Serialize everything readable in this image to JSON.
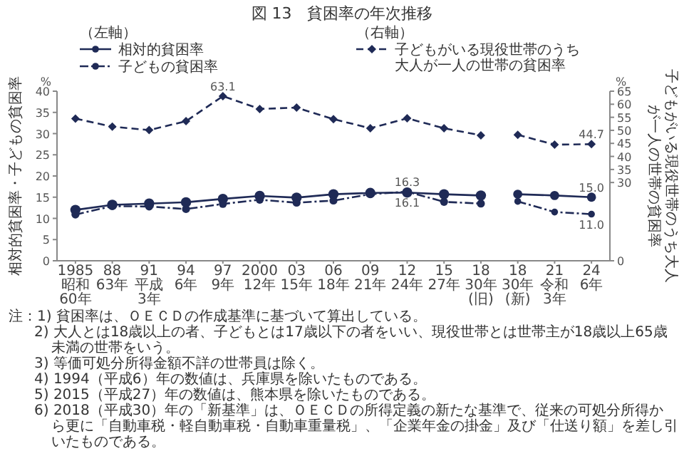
{
  "chart_data": {
    "type": "line",
    "title": "図 13　貧困率の年次推移",
    "categories": [
      "1985\n昭和60年",
      "88\n63年",
      "91\n平成3年",
      "94\n6年",
      "97\n9年",
      "2000\n12年",
      "03\n15年",
      "06\n18年",
      "09\n21年",
      "12\n24年",
      "15\n27年",
      "18\n30年(旧)",
      "18\n30年(新)",
      "21\n令和3年",
      "24\n6年"
    ],
    "ylabel": "相対的貧困率・子どもの貧困率",
    "y2label": "子どもがいる現役世帯のうち大人が一人の世帯の貧困率",
    "ylim": [
      0,
      40
    ],
    "yticks": [
      0,
      5,
      10,
      15,
      20,
      25,
      30,
      35,
      40
    ],
    "y2lim": [
      0,
      65
    ],
    "y2ticks": [
      0,
      30,
      35,
      40,
      45,
      50,
      55,
      60,
      65
    ],
    "legend": "top",
    "grid": false,
    "series": [
      {
        "name": "相対的貧困率",
        "color": "#1f2a56",
        "marker": "circle",
        "line_style": "solid",
        "values": [
          12.0,
          13.2,
          13.5,
          13.8,
          14.6,
          15.3,
          14.9,
          15.7,
          16.0,
          16.1,
          15.7,
          15.4,
          null,
          null,
          null
        ],
        "value_labels": [
          null,
          null,
          null,
          null,
          null,
          null,
          null,
          null,
          null,
          "16.1",
          null,
          null,
          null,
          null,
          null
        ]
      },
      {
        "color": "#1f2a56",
        "marker": "circle",
        "line_style": "solid",
        "values": [
          null,
          null,
          null,
          null,
          null,
          null,
          null,
          null,
          null,
          null,
          null,
          null,
          15.7,
          15.4,
          15.0
        ],
        "value_labels": [
          null,
          null,
          null,
          null,
          null,
          null,
          null,
          null,
          null,
          null,
          null,
          null,
          null,
          null,
          "15.0"
        ]
      },
      {
        "name": "子どもの貧困率",
        "color": "#1f2a56",
        "marker": "circle",
        "line_style": "dotted",
        "values": [
          10.9,
          12.9,
          12.8,
          12.2,
          13.4,
          14.4,
          13.7,
          14.2,
          15.7,
          16.3,
          13.9,
          13.5,
          null,
          null,
          null
        ],
        "value_labels": [
          null,
          null,
          null,
          null,
          null,
          null,
          null,
          null,
          null,
          "16.3",
          null,
          null,
          null,
          null,
          null
        ]
      },
      {
        "color": "#1f2a56",
        "marker": "circle",
        "line_style": "dotted",
        "values": [
          null,
          null,
          null,
          null,
          null,
          null,
          null,
          null,
          null,
          null,
          null,
          null,
          14.0,
          11.5,
          11.0
        ],
        "value_labels": [
          null,
          null,
          null,
          null,
          null,
          null,
          null,
          null,
          null,
          null,
          null,
          null,
          null,
          null,
          "11.0"
        ]
      },
      {
        "name": "子どもがいる現役世帯のうち大人が一人の世帯の貧困率",
        "color": "#1f2a56",
        "marker": "diamond",
        "line_style": "dashed",
        "axis": "y2",
        "values": [
          54.5,
          51.4,
          50.1,
          53.5,
          63.1,
          58.2,
          58.7,
          54.3,
          50.8,
          54.6,
          50.8,
          48.1,
          null,
          null,
          null
        ],
        "value_labels": [
          null,
          null,
          null,
          null,
          "63.1",
          null,
          null,
          null,
          null,
          null,
          null,
          null,
          null,
          null,
          null
        ]
      },
      {
        "color": "#1f2a56",
        "marker": "diamond",
        "line_style": "dashed",
        "axis": "y2",
        "values": [
          null,
          null,
          null,
          null,
          null,
          null,
          null,
          null,
          null,
          null,
          null,
          null,
          48.3,
          44.5,
          44.7
        ],
        "value_labels": [
          null,
          null,
          null,
          null,
          null,
          null,
          null,
          null,
          null,
          null,
          null,
          null,
          null,
          null,
          "44.7"
        ]
      }
    ],
    "annotations": [
      "%",
      "%",
      "（左軸）",
      "（右軸）",
      "注：1) 貧困率は、ＯＥＣＤの作成基準に基づいて算出している。",
      "2) 大人とは18歳以上の者、子どもとは17歳以下の者をいい、現役世帯とは世帯主が18歳以上65歳未満の世帯をいう。",
      "3) 等価可処分所得金額不詳の世帯員は除く。",
      "4) 1994（平成6）年の数値は、兵庫県を除いたものである。",
      "5) 2015（平成27）年の数値は、熊本県を除いたものである。",
      "6) 2018（平成30）年の「新基準」は、ＯＥＣＤの所得定義の新たな基準で、従来の可処分所得から更に「自動車税・軽自動車税・自動車重量税」、「企業年金の掛金」及び「仕送り額」を差し引いたものである。"
    ]
  }
}
